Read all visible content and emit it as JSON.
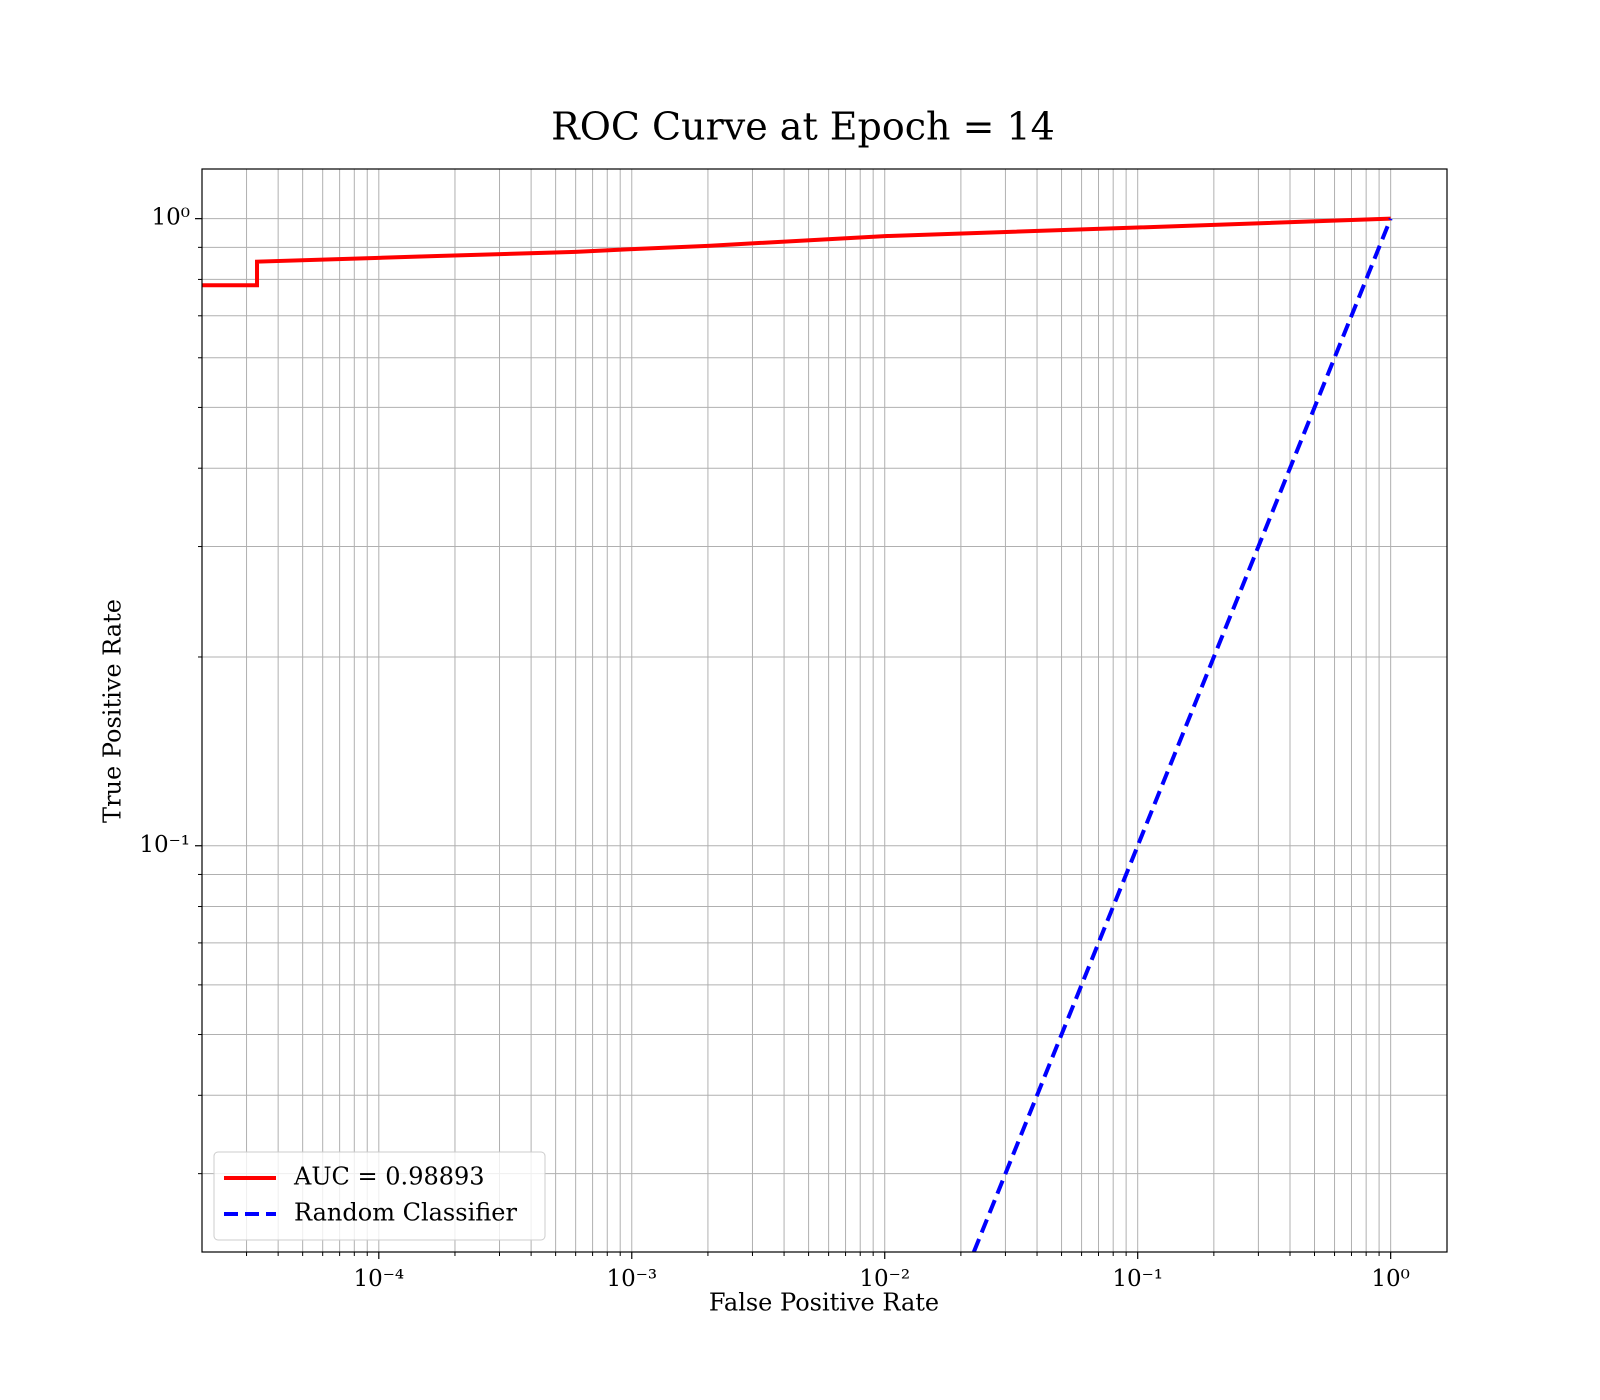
{
  "chart_data": {
    "type": "line",
    "title": "ROC Curve at Epoch = 14",
    "xlabel": "False Positive Rate",
    "ylabel": "True Positive Rate",
    "xscale": "log",
    "yscale": "log",
    "xlim": [
      2e-05,
      1.67
    ],
    "ylim": [
      0.0225,
      1.2
    ],
    "xticks": [
      {
        "value": 0.0001,
        "label": "10⁻⁴"
      },
      {
        "value": 0.001,
        "label": "10⁻³"
      },
      {
        "value": 0.01,
        "label": "10⁻²"
      },
      {
        "value": 0.1,
        "label": "10⁻¹"
      },
      {
        "value": 1,
        "label": "10⁰"
      }
    ],
    "yticks": [
      {
        "value": 0.1,
        "label": "10⁻¹"
      },
      {
        "value": 1,
        "label": "10⁰"
      }
    ],
    "xminorticks": [
      3e-05,
      4e-05,
      5e-05,
      6e-05,
      7e-05,
      8e-05,
      9e-05,
      0.0002,
      0.0003,
      0.0004,
      0.0005,
      0.0006,
      0.0007,
      0.0008,
      0.0009,
      0.002,
      0.003,
      0.004,
      0.005,
      0.006,
      0.007,
      0.008,
      0.009,
      0.02,
      0.03,
      0.04,
      0.05,
      0.06,
      0.07,
      0.08,
      0.09,
      0.2,
      0.3,
      0.4,
      0.5,
      0.6,
      0.7,
      0.8,
      0.9
    ],
    "yminorticks": [
      0.03,
      0.04,
      0.05,
      0.06,
      0.07,
      0.08,
      0.09,
      0.2,
      0.3,
      0.4,
      0.5,
      0.6,
      0.7,
      0.8,
      0.9
    ],
    "grid": true,
    "legend": "lower left",
    "series": [
      {
        "name": "AUC = 0.98893",
        "color": "#ff0000",
        "dash": "solid",
        "x": [
          2e-05,
          3.3e-05,
          3.3e-05,
          0.0001,
          0.00017,
          0.0006,
          0.001,
          0.002,
          0.01,
          0.1,
          1
        ],
        "y": [
          0.783,
          0.783,
          0.854,
          0.866,
          0.872,
          0.885,
          0.894,
          0.905,
          0.938,
          0.968,
          1
        ]
      },
      {
        "name": "Random Classifier",
        "color": "#0000ff",
        "dash": "dashed",
        "x": [
          0.0225,
          1
        ],
        "y": [
          0.0225,
          1
        ]
      }
    ]
  }
}
